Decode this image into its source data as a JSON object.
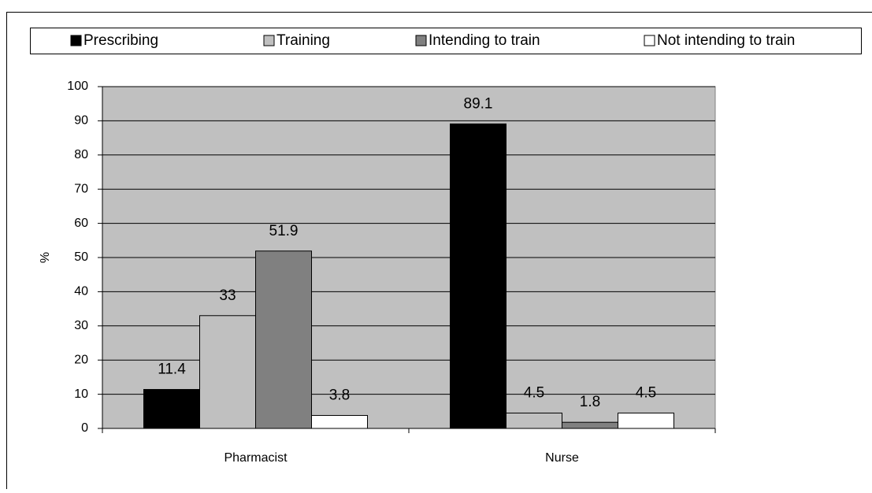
{
  "chart_data": {
    "type": "bar",
    "categories": [
      "Pharmacist",
      "Nurse"
    ],
    "series": [
      {
        "name": "Prescribing",
        "color": "#000000",
        "values": [
          11.4,
          89.1
        ]
      },
      {
        "name": "Training",
        "color": "#c0c0c0",
        "values": [
          33,
          4.5
        ]
      },
      {
        "name": "Intending to train",
        "color": "#808080",
        "values": [
          51.9,
          1.8
        ]
      },
      {
        "name": "Not intending to train",
        "color": "#ffffff",
        "values": [
          3.8,
          4.5
        ]
      }
    ],
    "y_label": "%",
    "ylim": [
      0,
      100
    ],
    "yticks": [
      0,
      10,
      20,
      30,
      40,
      50,
      60,
      70,
      80,
      90,
      100
    ],
    "grid": true,
    "legend": "top",
    "plot_background": "#c0c0c0"
  }
}
